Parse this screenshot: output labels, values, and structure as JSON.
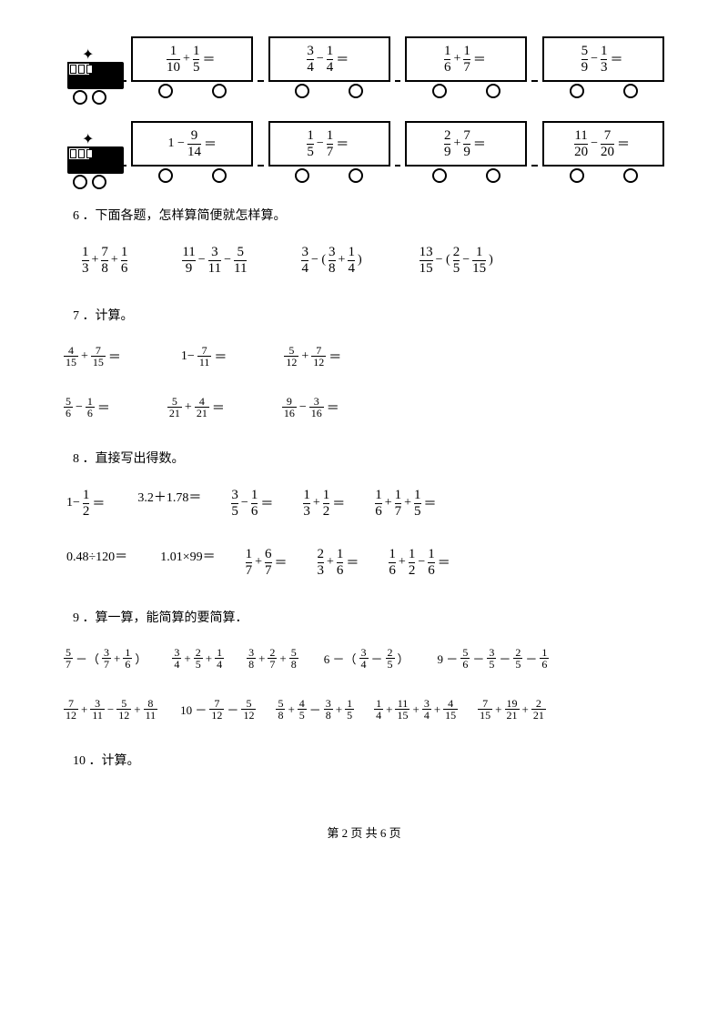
{
  "trains": [
    {
      "cars": [
        {
          "a": "1",
          "b": "10",
          "op": "+",
          "c": "1",
          "d": "5"
        },
        {
          "a": "3",
          "b": "4",
          "op": "−",
          "c": "1",
          "d": "4"
        },
        {
          "a": "1",
          "b": "6",
          "op": "+",
          "c": "1",
          "d": "7"
        },
        {
          "a": "5",
          "b": "9",
          "op": "−",
          "c": "1",
          "d": "3"
        }
      ]
    },
    {
      "cars": [
        {
          "pre": "1 −",
          "a": "9",
          "b": "14"
        },
        {
          "a": "1",
          "b": "5",
          "op": "−",
          "c": "1",
          "d": "7"
        },
        {
          "a": "2",
          "b": "9",
          "op": "+",
          "c": "7",
          "d": "9"
        },
        {
          "a": "11",
          "b": "20",
          "op": "−",
          "c": "7",
          "d": "20"
        }
      ]
    }
  ],
  "q6": {
    "title": "6 ．下面各题，怎样算简便就怎样算。",
    "items": [
      {
        "parts": [
          [
            "1",
            "3"
          ],
          "+",
          [
            "7",
            "8"
          ],
          "+",
          [
            "1",
            "6"
          ]
        ]
      },
      {
        "parts": [
          [
            "11",
            "9"
          ],
          "−",
          [
            "3",
            "11"
          ],
          "−",
          [
            "5",
            "11"
          ]
        ]
      },
      {
        "parts": [
          [
            "3",
            "4"
          ],
          "− (",
          [
            "3",
            "8"
          ],
          "+",
          [
            "1",
            "4"
          ],
          ")"
        ]
      },
      {
        "parts": [
          [
            "13",
            "15"
          ],
          "− (",
          [
            "2",
            "5"
          ],
          "−",
          [
            "1",
            "15"
          ],
          ")"
        ]
      }
    ]
  },
  "q7": {
    "title": "7 ．计算。",
    "row1": [
      {
        "parts": [
          [
            "4",
            "15"
          ],
          "+",
          [
            "7",
            "15"
          ],
          "＝"
        ]
      },
      {
        "parts": [
          "1−",
          [
            "7",
            "11"
          ],
          "＝"
        ]
      },
      {
        "parts": [
          [
            "5",
            "12"
          ],
          "+",
          [
            "7",
            "12"
          ],
          "＝"
        ]
      }
    ],
    "row2": [
      {
        "parts": [
          [
            "5",
            "6"
          ],
          "−",
          [
            "1",
            "6"
          ],
          "＝"
        ]
      },
      {
        "parts": [
          [
            "5",
            "21"
          ],
          "+",
          [
            "4",
            "21"
          ],
          "＝"
        ]
      },
      {
        "parts": [
          [
            "9",
            "16"
          ],
          "−",
          [
            "3",
            "16"
          ],
          "＝"
        ]
      }
    ]
  },
  "q8": {
    "title": "8 ．直接写出得数。",
    "row1": [
      {
        "parts": [
          "1−",
          [
            "1",
            "2"
          ],
          "＝"
        ]
      },
      {
        "text": "3.2＋1.78＝"
      },
      {
        "parts": [
          [
            "3",
            "5"
          ],
          "−",
          [
            "1",
            "6"
          ],
          "＝"
        ]
      },
      {
        "parts": [
          [
            "1",
            "3"
          ],
          "+",
          [
            "1",
            "2"
          ],
          "＝"
        ]
      },
      {
        "parts": [
          [
            "1",
            "6"
          ],
          "+",
          [
            "1",
            "7"
          ],
          "+",
          [
            "1",
            "5"
          ],
          "＝"
        ]
      }
    ],
    "row2": [
      {
        "text": "0.48÷120＝"
      },
      {
        "text": "1.01×99＝"
      },
      {
        "parts": [
          [
            "1",
            "7"
          ],
          "+",
          [
            "6",
            "7"
          ],
          "＝"
        ]
      },
      {
        "parts": [
          [
            "2",
            "3"
          ],
          "+",
          [
            "1",
            "6"
          ],
          "＝"
        ]
      },
      {
        "parts": [
          [
            "1",
            "6"
          ],
          "+",
          [
            "1",
            "2"
          ],
          "−",
          [
            "1",
            "6"
          ],
          "＝"
        ]
      }
    ]
  },
  "q9": {
    "title": "9 ．算一算，能简算的要简算．",
    "row1": [
      {
        "parts": [
          [
            "5",
            "7"
          ],
          "－（",
          [
            "3",
            "7"
          ],
          "+",
          [
            "1",
            "6"
          ],
          "）"
        ]
      },
      {
        "parts": [
          [
            "3",
            "4"
          ],
          "+",
          [
            "2",
            "5"
          ],
          "+",
          [
            "1",
            "4"
          ]
        ]
      },
      {
        "parts": [
          [
            "3",
            "8"
          ],
          "+",
          [
            "2",
            "7"
          ],
          "+",
          [
            "5",
            "8"
          ]
        ]
      },
      {
        "parts": [
          "6 －（",
          [
            "3",
            "4"
          ],
          "－",
          [
            "2",
            "5"
          ],
          "）"
        ]
      },
      {
        "parts": [
          "9 －",
          [
            "5",
            "6"
          ],
          "－",
          [
            "3",
            "5"
          ],
          "－",
          [
            "2",
            "5"
          ],
          "－",
          [
            "1",
            "6"
          ]
        ]
      }
    ],
    "row2": [
      {
        "parts": [
          [
            "7",
            "12"
          ],
          "+",
          [
            "3",
            "11"
          ],
          "−",
          [
            "5",
            "12"
          ],
          "+",
          [
            "8",
            "11"
          ]
        ]
      },
      {
        "parts": [
          "10 －",
          [
            "7",
            "12"
          ],
          "－",
          [
            "5",
            "12"
          ]
        ]
      },
      {
        "parts": [
          [
            "5",
            "8"
          ],
          "+",
          [
            "4",
            "5"
          ],
          "－",
          [
            "3",
            "8"
          ],
          "+",
          [
            "1",
            "5"
          ]
        ]
      },
      {
        "parts": [
          [
            "1",
            "4"
          ],
          "+",
          [
            "11",
            "15"
          ],
          "+",
          [
            "3",
            "4"
          ],
          "+",
          [
            "4",
            "15"
          ]
        ]
      },
      {
        "parts": [
          [
            "7",
            "15"
          ],
          "+",
          [
            "19",
            "21"
          ],
          "+",
          [
            "2",
            "21"
          ]
        ]
      }
    ]
  },
  "q10": {
    "title": "10 ．计算。"
  },
  "footer": "第 2 页 共 6 页"
}
